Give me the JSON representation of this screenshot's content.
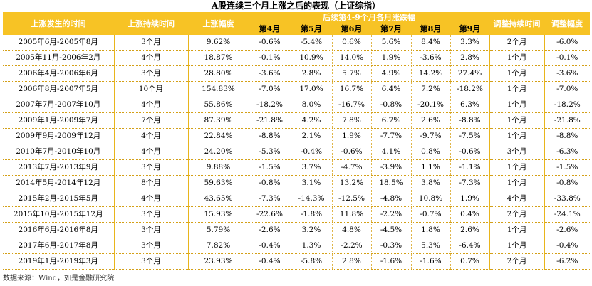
{
  "title": "A股连续三个月上涨之后的表现（上证综指）",
  "headers": {
    "period": "上涨发生的时间",
    "duration": "上涨持续时间",
    "gain": "上涨幅度",
    "followup": "后续第4-9个月各月涨跌幅",
    "months": [
      "第4月",
      "第5月",
      "第6月",
      "第7月",
      "第8月",
      "第9月"
    ],
    "adj_duration": "调整持续时间",
    "adj_magnitude": "调整幅度"
  },
  "rows": [
    {
      "period": "2005年6月-2005年8月",
      "duration": "3个月",
      "gain": "9.62%",
      "m": [
        "-0.6%",
        "-5.4%",
        "0.6%",
        "5.6%",
        "8.4%",
        "3.3%"
      ],
      "adj_duration": "2个月",
      "adj_magnitude": "-6.0%"
    },
    {
      "period": "2005年11月-2006年2月",
      "duration": "4个月",
      "gain": "18.87%",
      "m": [
        "-0.1%",
        "10.9%",
        "14.0%",
        "1.9%",
        "-3.6%",
        "2.8%"
      ],
      "adj_duration": "1个月",
      "adj_magnitude": "-0.1%"
    },
    {
      "period": "2006年4月-2006年6月",
      "duration": "3个月",
      "gain": "28.80%",
      "m": [
        "-3.6%",
        "2.8%",
        "5.7%",
        "4.9%",
        "14.2%",
        "27.4%"
      ],
      "adj_duration": "1个月",
      "adj_magnitude": "-3.6%"
    },
    {
      "period": "2006年8月-2007年5月",
      "duration": "10个月",
      "gain": "154.83%",
      "m": [
        "-7.0%",
        "17.0%",
        "16.7%",
        "6.4%",
        "7.2%",
        "-18.2%"
      ],
      "adj_duration": "1个月",
      "adj_magnitude": "-7.0%"
    },
    {
      "period": "2007年7月-2007年10月",
      "duration": "4个月",
      "gain": "55.86%",
      "m": [
        "-18.2%",
        "8.0%",
        "-16.7%",
        "-0.8%",
        "-20.1%",
        "6.3%"
      ],
      "adj_duration": "1个月",
      "adj_magnitude": "-18.2%"
    },
    {
      "period": "2009年1月-2009年7月",
      "duration": "7个月",
      "gain": "87.39%",
      "m": [
        "-21.8%",
        "4.2%",
        "7.8%",
        "6.7%",
        "2.6%",
        "-8.8%"
      ],
      "adj_duration": "1个月",
      "adj_magnitude": "-21.8%"
    },
    {
      "period": "2009年9月-2009年12月",
      "duration": "4个月",
      "gain": "22.84%",
      "m": [
        "-8.8%",
        "2.1%",
        "1.9%",
        "-7.7%",
        "-9.7%",
        "-7.5%"
      ],
      "adj_duration": "1个月",
      "adj_magnitude": "-8.8%"
    },
    {
      "period": "2010年7月-2010年10月",
      "duration": "4个月",
      "gain": "24.20%",
      "m": [
        "-5.3%",
        "-0.4%",
        "-0.6%",
        "4.1%",
        "0.8%",
        "-0.6%"
      ],
      "adj_duration": "3个月",
      "adj_magnitude": "-6.3%"
    },
    {
      "period": "2013年7月-2013年9月",
      "duration": "3个月",
      "gain": "9.88%",
      "m": [
        "-1.5%",
        "3.7%",
        "-4.7%",
        "-3.9%",
        "1.1%",
        "-1.1%"
      ],
      "adj_duration": "1个月",
      "adj_magnitude": "-1.5%"
    },
    {
      "period": "2014年5月-2014年12月",
      "duration": "8个月",
      "gain": "59.63%",
      "m": [
        "-0.8%",
        "3.1%",
        "13.2%",
        "18.5%",
        "3.8%",
        "-7.3%"
      ],
      "adj_duration": "1个月",
      "adj_magnitude": "-0.8%"
    },
    {
      "period": "2015年2月-2015年5月",
      "duration": "4个月",
      "gain": "43.65%",
      "m": [
        "-7.3%",
        "-14.3%",
        "-12.5%",
        "-4.8%",
        "10.8%",
        "1.9%"
      ],
      "adj_duration": "4个月",
      "adj_magnitude": "-33.8%"
    },
    {
      "period": "2015年10月-2015年12月",
      "duration": "3个月",
      "gain": "15.93%",
      "m": [
        "-22.6%",
        "-1.8%",
        "11.8%",
        "-2.2%",
        "-0.7%",
        "0.4%"
      ],
      "adj_duration": "2个月",
      "adj_magnitude": "-24.1%"
    },
    {
      "period": "2016年6月-2016年8月",
      "duration": "3个月",
      "gain": "5.79%",
      "m": [
        "-2.6%",
        "3.2%",
        "4.8%",
        "-4.5%",
        "1.8%",
        "2.6%"
      ],
      "adj_duration": "1个月",
      "adj_magnitude": "-2.6%"
    },
    {
      "period": "2017年6月-2017年8月",
      "duration": "3个月",
      "gain": "7.82%",
      "m": [
        "-0.4%",
        "1.3%",
        "-2.2%",
        "-0.3%",
        "5.3%",
        "-6.4%"
      ],
      "adj_duration": "1个月",
      "adj_magnitude": "-0.4%"
    },
    {
      "period": "2019年1月-2019年3月",
      "duration": "3个月",
      "gain": "23.93%",
      "m": [
        "-0.4%",
        "-5.8%",
        "2.8%",
        "-1.6%",
        "-1.6%",
        "0.7%"
      ],
      "adj_duration": "2个月",
      "adj_magnitude": "-6.2%"
    }
  ],
  "source": "数据来源：Wind，如是金融研究院"
}
